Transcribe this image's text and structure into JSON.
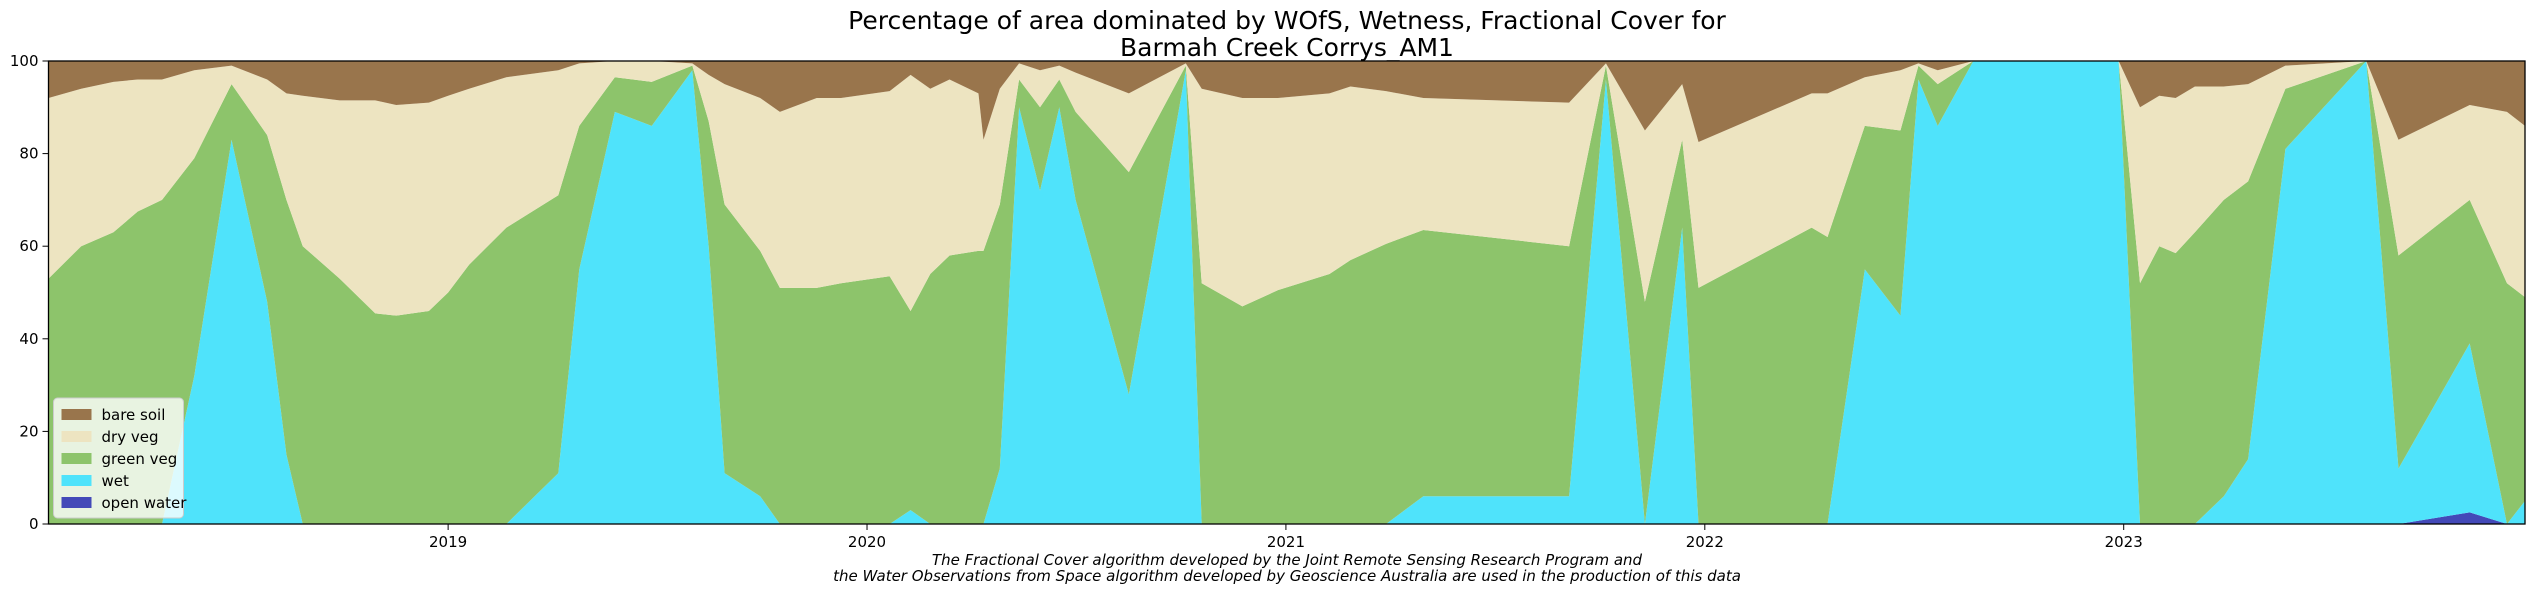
{
  "chart_data": {
    "type": "stacked_area",
    "title": [
      "Percentage of area dominated by WOfS, Wetness, Fractional Cover for",
      "Barmah Creek Corrys_AM1"
    ],
    "annotations": [
      "The Fractional Cover algorithm developed by the Joint Remote Sensing Research Program and",
      "the Water Observations from Space algorithm developed by Geoscience Australia are used in the production of this data"
    ],
    "x": [
      2018.046,
      2018.124,
      2018.201,
      2018.259,
      2018.317,
      2018.394,
      2018.483,
      2018.568,
      2018.614,
      2018.653,
      2018.741,
      2018.826,
      2018.876,
      2018.954,
      2019.0,
      2019.05,
      2019.139,
      2019.263,
      2019.313,
      2019.398,
      2019.486,
      2019.583,
      2019.622,
      2019.66,
      2019.745,
      2019.792,
      2019.88,
      2019.938,
      2020.054,
      2020.104,
      2020.151,
      2020.197,
      2020.266,
      2020.278,
      2020.317,
      2020.363,
      2020.413,
      2020.459,
      2020.498,
      2020.625,
      2020.761,
      2020.799,
      2020.896,
      2020.981,
      2021.104,
      2021.154,
      2021.239,
      2021.328,
      2021.676,
      2021.764,
      2021.857,
      2021.946,
      2021.985,
      2022.255,
      2022.293,
      2022.382,
      2022.467,
      2022.51,
      2022.556,
      2022.641,
      2022.988,
      2023.039,
      2023.085,
      2023.124,
      2023.17,
      2023.239,
      2023.297,
      2023.386,
      2023.579,
      2023.656,
      2023.826,
      2023.915,
      2023.958
    ],
    "series": [
      {
        "name": "bare soil",
        "color": "#99754c",
        "values": [
          8,
          6,
          4.5,
          4,
          4,
          2,
          1,
          4,
          7,
          7.5,
          8.5,
          8.5,
          9.5,
          9,
          7.5,
          6,
          3.5,
          2,
          0.5,
          0,
          0,
          0.5,
          3,
          5,
          8,
          11,
          8,
          8,
          6.5,
          3,
          6,
          4,
          7,
          17,
          6,
          0.5,
          2,
          1,
          2.5,
          7,
          0.5,
          6,
          8,
          8,
          7,
          5.5,
          6.5,
          8,
          9,
          0.5,
          15,
          5,
          17.5,
          7,
          7,
          3.5,
          2,
          0.5,
          2,
          0,
          0,
          10,
          7.5,
          8,
          5.5,
          5.5,
          5,
          1,
          0,
          17,
          9.5,
          11,
          14
        ]
      },
      {
        "name": "dry veg",
        "color": "#ede4c1",
        "values": [
          39,
          34,
          32.5,
          28.5,
          26,
          19,
          4,
          12,
          23,
          32.5,
          38.5,
          46,
          45.5,
          45,
          42.5,
          38,
          32.5,
          27,
          13.5,
          3.5,
          4.5,
          0.5,
          10,
          26,
          33,
          38,
          41,
          40,
          40,
          51,
          40,
          38,
          34,
          24,
          25,
          3.5,
          8,
          3,
          8.5,
          17,
          0.5,
          42,
          45,
          41.5,
          39,
          37.5,
          33,
          28.5,
          31,
          0.5,
          37,
          12,
          31.5,
          29,
          31,
          10.5,
          13,
          0.5,
          3,
          0,
          0,
          38,
          32.5,
          33.5,
          31.5,
          24.5,
          21,
          5,
          0,
          25,
          20.5,
          37,
          37
        ]
      },
      {
        "name": "green veg",
        "color": "#8dc46b",
        "values": [
          53,
          60,
          63,
          67.5,
          70,
          47,
          12,
          36,
          55,
          60,
          53,
          45.5,
          45,
          46,
          50,
          56,
          64,
          60,
          31,
          7.5,
          9.5,
          1,
          27,
          58,
          53,
          51,
          51,
          52,
          53.5,
          43,
          54,
          58,
          59,
          59,
          57,
          6,
          18,
          6,
          19,
          48,
          1,
          52,
          47,
          50.5,
          54,
          57,
          60.5,
          57.5,
          54,
          3,
          48,
          19,
          51,
          64,
          62,
          31,
          40,
          3,
          9,
          0,
          0,
          52,
          60,
          58.5,
          63,
          64,
          60,
          13,
          0,
          46,
          31,
          52,
          44
        ]
      },
      {
        "name": "wet",
        "color": "#4fe3fb",
        "values": [
          0,
          0,
          0,
          0,
          0,
          32,
          83,
          48,
          15,
          0,
          0,
          0,
          0,
          0,
          0,
          0,
          0,
          11,
          55,
          89,
          86,
          98,
          60,
          11,
          6,
          0,
          0,
          0,
          0,
          3,
          0,
          0,
          0,
          0,
          12,
          90,
          72,
          90,
          70,
          28,
          98,
          0,
          0,
          0,
          0,
          0,
          0,
          6,
          6,
          96,
          0,
          64,
          0,
          0,
          0,
          55,
          45,
          96,
          86,
          100,
          100,
          0,
          0,
          0,
          0,
          6,
          14,
          81,
          100,
          12,
          36.5,
          0,
          5
        ]
      },
      {
        "name": "open water",
        "color": "#4349b8",
        "values": [
          0,
          0,
          0,
          0,
          0,
          0,
          0,
          0,
          0,
          0,
          0,
          0,
          0,
          0,
          0,
          0,
          0,
          0,
          0,
          0,
          0,
          0,
          0,
          0,
          0,
          0,
          0,
          0,
          0,
          0,
          0,
          0,
          0,
          0,
          0,
          0,
          0,
          0,
          0,
          0,
          0,
          0,
          0,
          0,
          0,
          0,
          0,
          0,
          0,
          0,
          0,
          0,
          0,
          0,
          0,
          0,
          0,
          0,
          0,
          0,
          0,
          0,
          0,
          0,
          0,
          0,
          0,
          0,
          0,
          0,
          2.5,
          0,
          0
        ]
      }
    ],
    "xlim": [
      2018.046,
      2023.958
    ],
    "ylim": [
      0,
      100
    ],
    "xticks": [
      2019,
      2020,
      2021,
      2022,
      2023
    ],
    "yticks": [
      0,
      20,
      40,
      60,
      80,
      100
    ],
    "grid": false,
    "legend": "lower left"
  }
}
